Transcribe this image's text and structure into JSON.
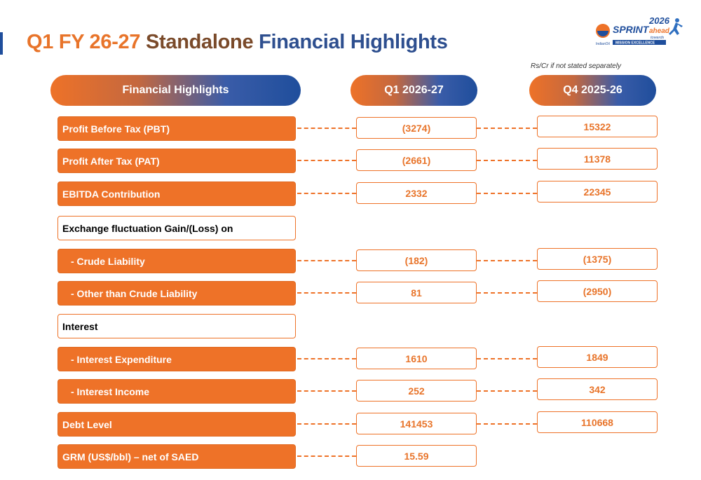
{
  "title": {
    "part1": "Q1 FY 26-27",
    "part2": "Standalone",
    "part3": "Financial Highlights"
  },
  "logo": {
    "year": "2026",
    "sprint": "SPRINT",
    "ahead": "ahead",
    "towards": "towards",
    "mission": "MISSION EXCELLENCE",
    "brand": "IndianOil"
  },
  "note": "Rs/Cr if not stated separately",
  "headers": {
    "label": "Financial Highlights",
    "q1": "Q1 2026-27",
    "q4": "Q4 2025-26"
  },
  "rows": [
    {
      "label": "Profit Before Tax (PBT)",
      "q1": "(3274)",
      "q4": "15322"
    },
    {
      "label": "Profit After Tax (PAT)",
      "q1": "(2661)",
      "q4": "11378"
    },
    {
      "label": "EBITDA Contribution",
      "q1": "2332",
      "q4": "22345"
    },
    {
      "label": "Exchange fluctuation Gain/(Loss) on"
    },
    {
      "label": "- Crude Liability",
      "q1": "(182)",
      "q4": "(1375)"
    },
    {
      "label": "- Other than Crude Liability",
      "q1": "81",
      "q4": "(2950)"
    },
    {
      "label": "Interest"
    },
    {
      "label": "- Interest Expenditure",
      "q1": "1610",
      "q4": "1849"
    },
    {
      "label": "- Interest Income",
      "q1": "252",
      "q4": "342"
    },
    {
      "label": "Debt Level",
      "q1": "141453",
      "q4": "110668"
    },
    {
      "label": "GRM (US$/bbl) – net of SAED",
      "q1": "15.59"
    }
  ]
}
